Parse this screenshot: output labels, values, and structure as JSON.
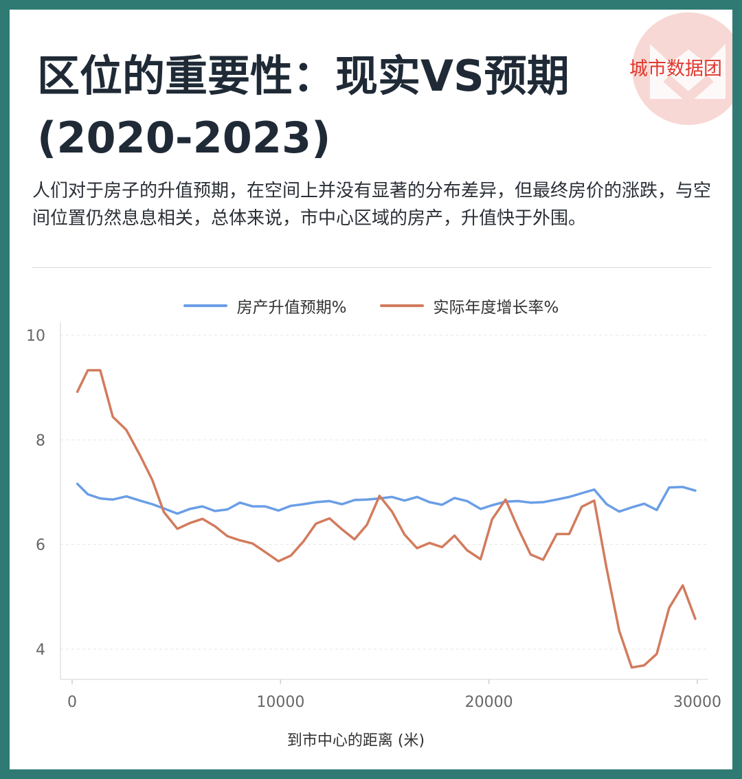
{
  "brand": {
    "text": "城市数据团",
    "color": "#e0392f"
  },
  "title": "区位的重要性：现实VS预期(2020-2023)",
  "subtitle": "人们对于房子的升值预期，在空间上并没有显著的分布差异，但最终房价的涨跌，与空间位置仍然息息相关，总体来说，市中心区域的房产，升值快于外围。",
  "chart_data": {
    "type": "line",
    "xlabel": "到市中心的距离 (米)",
    "ylabel": "",
    "xlim": [
      0,
      30000
    ],
    "ylim": [
      3.5,
      10.2
    ],
    "x_ticks": [
      0,
      10000,
      20000,
      30000
    ],
    "x_tick_labels": [
      "0",
      "10000",
      "20000",
      "30000"
    ],
    "y_ticks": [
      4,
      6,
      8,
      10
    ],
    "y_tick_labels": [
      "4",
      "6",
      "8",
      "10"
    ],
    "grid": "horizontal dashed",
    "legend": "top-center",
    "x": [
      250,
      750,
      1350,
      1950,
      2600,
      3250,
      3850,
      4400,
      5050,
      5650,
      6250,
      6850,
      7450,
      8050,
      8650,
      9250,
      9900,
      10500,
      11100,
      11700,
      12350,
      12950,
      13550,
      14150,
      14750,
      15350,
      15950,
      16550,
      17150,
      17750,
      18350,
      18950,
      19600,
      20150,
      20800,
      21400,
      22000,
      22600,
      23250,
      23850,
      24450,
      25050,
      25650,
      26250,
      26850,
      27450,
      28050,
      28650,
      29300,
      29900
    ],
    "series": [
      {
        "name": "房产升值预期%",
        "color": "#6a9ee6",
        "values": [
          7.16,
          6.96,
          6.88,
          6.86,
          6.92,
          6.84,
          6.77,
          6.69,
          6.59,
          6.68,
          6.73,
          6.64,
          6.67,
          6.8,
          6.73,
          6.73,
          6.65,
          6.74,
          6.77,
          6.81,
          6.83,
          6.77,
          6.85,
          6.86,
          6.88,
          6.91,
          6.84,
          6.91,
          6.81,
          6.76,
          6.89,
          6.83,
          6.68,
          6.75,
          6.82,
          6.83,
          6.8,
          6.81,
          6.86,
          6.91,
          6.98,
          7.05,
          6.77,
          6.63,
          6.71,
          6.78,
          6.66,
          7.09,
          7.1,
          7.03
        ]
      },
      {
        "name": "实际年度增长率%",
        "color": "#d27b5d",
        "values": [
          8.92,
          9.33,
          9.33,
          8.44,
          8.19,
          7.71,
          7.23,
          6.62,
          6.3,
          6.41,
          6.49,
          6.35,
          6.16,
          6.08,
          6.02,
          5.86,
          5.68,
          5.79,
          6.06,
          6.4,
          6.5,
          6.29,
          6.1,
          6.38,
          6.93,
          6.63,
          6.19,
          5.93,
          6.03,
          5.95,
          6.17,
          5.89,
          5.72,
          6.48,
          6.86,
          6.31,
          5.81,
          5.71,
          6.2,
          6.2,
          6.72,
          6.84,
          5.54,
          4.35,
          3.65,
          3.69,
          3.91,
          4.79,
          5.22,
          4.58
        ]
      }
    ]
  }
}
